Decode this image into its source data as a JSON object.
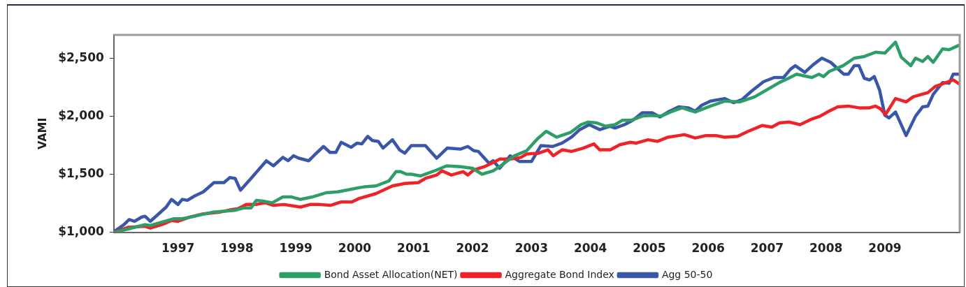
{
  "chart_data": {
    "type": "line",
    "ylabel": "VAMI",
    "xlim": [
      1995.91,
      2010.27
    ],
    "ylim": [
      1000,
      2700
    ],
    "xticks": [
      1997,
      1998,
      1999,
      2000,
      2001,
      2002,
      2003,
      2004,
      2005,
      2006,
      2007,
      2008,
      2009
    ],
    "yticks": [
      {
        "value": 1000,
        "label": "$1,000"
      },
      {
        "value": 1500,
        "label": "$1,500"
      },
      {
        "value": 2000,
        "label": "$2,000"
      },
      {
        "value": 2500,
        "label": "$2,500"
      }
    ],
    "grid": false,
    "legend": "bottom",
    "marker": "none",
    "line_style": "solid",
    "series": [
      {
        "name": "Bond Asset Allocation(NET)",
        "color": "#2e9e68",
        "x": [
          1995.92,
          1996.16,
          1996.44,
          1996.53,
          1996.92,
          1997.07,
          1997.28,
          1997.6,
          1997.96,
          1998.12,
          1998.24,
          1998.33,
          1998.44,
          1998.6,
          1998.78,
          1998.93,
          1999.08,
          1999.28,
          1999.52,
          1999.71,
          2000.0,
          2000.16,
          2000.36,
          2000.58,
          2000.7,
          2000.78,
          2000.88,
          2000.96,
          2001.12,
          2001.39,
          2001.56,
          2001.8,
          2002.0,
          2002.16,
          2002.35,
          2002.52,
          2002.71,
          2002.92,
          2003.1,
          2003.25,
          2003.43,
          2003.67,
          2003.84,
          2003.96,
          2004.11,
          2004.26,
          2004.42,
          2004.54,
          2004.69,
          2004.88,
          2005.02,
          2005.2,
          2005.36,
          2005.56,
          2005.68,
          2005.78,
          2006.04,
          2006.28,
          2006.54,
          2006.79,
          2007.06,
          2007.21,
          2007.36,
          2007.5,
          2007.76,
          2007.88,
          2007.96,
          2008.05,
          2008.29,
          2008.48,
          2008.65,
          2008.84,
          2009.0,
          2009.18,
          2009.28,
          2009.44,
          2009.52,
          2009.64,
          2009.73,
          2009.82,
          2009.98,
          2010.09,
          2010.25
        ],
        "values": [
          1000,
          1029,
          1065,
          1058,
          1116,
          1116,
          1138,
          1174,
          1188,
          1210,
          1210,
          1275,
          1268,
          1254,
          1304,
          1304,
          1283,
          1304,
          1341,
          1348,
          1377,
          1391,
          1399,
          1442,
          1522,
          1522,
          1500,
          1500,
          1485,
          1536,
          1572,
          1565,
          1551,
          1500,
          1529,
          1587,
          1659,
          1703,
          1804,
          1870,
          1819,
          1862,
          1927,
          1949,
          1942,
          1913,
          1927,
          1964,
          1964,
          2000,
          2007,
          2000,
          2036,
          2072,
          2051,
          2036,
          2087,
          2130,
          2123,
          2167,
          2246,
          2290,
          2326,
          2362,
          2333,
          2362,
          2341,
          2384,
          2435,
          2500,
          2514,
          2551,
          2543,
          2638,
          2507,
          2435,
          2500,
          2471,
          2514,
          2464,
          2580,
          2572,
          2609
        ]
      },
      {
        "name": "Aggregate Bond Index",
        "color": "#ee2229",
        "x": [
          1995.92,
          1996.16,
          1996.44,
          1996.53,
          1996.76,
          1996.89,
          1997.0,
          1997.2,
          1997.43,
          1997.72,
          1997.92,
          1998.02,
          1998.16,
          1998.32,
          1998.48,
          1998.62,
          1998.8,
          1999.08,
          1999.24,
          1999.4,
          1999.59,
          1999.77,
          1999.95,
          2000.07,
          2000.36,
          2000.64,
          2000.85,
          2001.08,
          2001.2,
          2001.39,
          2001.48,
          2001.64,
          2001.84,
          2001.92,
          2002.02,
          2002.2,
          2002.35,
          2002.46,
          2002.64,
          2002.82,
          2002.92,
          2003.12,
          2003.28,
          2003.37,
          2003.52,
          2003.68,
          2003.88,
          2004.06,
          2004.16,
          2004.34,
          2004.5,
          2004.68,
          2004.78,
          2004.98,
          2005.14,
          2005.32,
          2005.5,
          2005.6,
          2005.78,
          2005.96,
          2006.13,
          2006.28,
          2006.5,
          2006.68,
          2006.92,
          2007.08,
          2007.21,
          2007.38,
          2007.56,
          2007.74,
          2007.9,
          2008.05,
          2008.2,
          2008.38,
          2008.56,
          2008.74,
          2008.84,
          2008.92,
          2009.01,
          2009.18,
          2009.36,
          2009.48,
          2009.73,
          2009.85,
          2010.0,
          2010.16,
          2010.27
        ],
        "values": [
          1000,
          1043,
          1051,
          1036,
          1072,
          1101,
          1094,
          1130,
          1159,
          1174,
          1196,
          1203,
          1239,
          1239,
          1254,
          1232,
          1239,
          1217,
          1239,
          1239,
          1232,
          1261,
          1261,
          1290,
          1333,
          1399,
          1420,
          1428,
          1464,
          1493,
          1529,
          1493,
          1522,
          1493,
          1536,
          1565,
          1601,
          1630,
          1630,
          1645,
          1674,
          1681,
          1710,
          1659,
          1710,
          1696,
          1725,
          1761,
          1710,
          1710,
          1754,
          1775,
          1768,
          1797,
          1783,
          1819,
          1833,
          1841,
          1812,
          1833,
          1833,
          1819,
          1826,
          1870,
          1920,
          1906,
          1942,
          1949,
          1927,
          1971,
          2000,
          2043,
          2080,
          2087,
          2072,
          2072,
          2087,
          2065,
          2014,
          2152,
          2123,
          2167,
          2203,
          2254,
          2283,
          2312,
          2275
        ]
      },
      {
        "name": "Agg 50-50",
        "color": "#3a56a8",
        "x": [
          1995.92,
          1996.08,
          1996.17,
          1996.26,
          1996.38,
          1996.44,
          1996.53,
          1996.8,
          1996.89,
          1997.0,
          1997.07,
          1997.16,
          1997.28,
          1997.43,
          1997.61,
          1997.78,
          1997.88,
          1997.97,
          1998.06,
          1998.24,
          1998.5,
          1998.62,
          1998.78,
          1998.87,
          1998.96,
          1999.05,
          1999.22,
          1999.32,
          1999.47,
          1999.58,
          1999.68,
          1999.77,
          1999.94,
          2000.04,
          2000.12,
          2000.22,
          2000.3,
          2000.4,
          2000.48,
          2000.64,
          2000.76,
          2000.85,
          2000.96,
          2001.2,
          2001.39,
          2001.57,
          2001.8,
          2001.92,
          2002.02,
          2002.1,
          2002.28,
          2002.35,
          2002.46,
          2002.64,
          2002.8,
          2003.0,
          2003.16,
          2003.36,
          2003.52,
          2003.68,
          2003.82,
          2003.98,
          2004.16,
          2004.33,
          2004.42,
          2004.58,
          2004.72,
          2004.88,
          2005.05,
          2005.18,
          2005.32,
          2005.5,
          2005.66,
          2005.78,
          2005.89,
          2006.04,
          2006.28,
          2006.43,
          2006.58,
          2006.74,
          2006.94,
          2007.12,
          2007.28,
          2007.4,
          2007.48,
          2007.64,
          2007.78,
          2007.93,
          2008.08,
          2008.3,
          2008.38,
          2008.48,
          2008.56,
          2008.65,
          2008.74,
          2008.82,
          2008.91,
          2009.0,
          2009.07,
          2009.18,
          2009.36,
          2009.52,
          2009.64,
          2009.73,
          2009.82,
          2009.98,
          2010.09,
          2010.16,
          2010.25
        ],
        "values": [
          1007,
          1065,
          1109,
          1094,
          1130,
          1138,
          1094,
          1217,
          1283,
          1239,
          1283,
          1275,
          1312,
          1348,
          1428,
          1428,
          1471,
          1464,
          1362,
          1464,
          1616,
          1572,
          1645,
          1616,
          1659,
          1638,
          1616,
          1667,
          1739,
          1688,
          1688,
          1775,
          1732,
          1768,
          1761,
          1826,
          1790,
          1783,
          1725,
          1797,
          1710,
          1681,
          1746,
          1746,
          1638,
          1725,
          1717,
          1739,
          1703,
          1696,
          1594,
          1616,
          1551,
          1659,
          1609,
          1609,
          1746,
          1739,
          1768,
          1819,
          1884,
          1927,
          1884,
          1913,
          1898,
          1927,
          1964,
          2029,
          2029,
          1993,
          2036,
          2080,
          2072,
          2043,
          2094,
          2130,
          2152,
          2116,
          2145,
          2217,
          2297,
          2333,
          2333,
          2406,
          2435,
          2377,
          2442,
          2500,
          2464,
          2362,
          2362,
          2435,
          2435,
          2326,
          2312,
          2341,
          2225,
          2007,
          1985,
          2036,
          1833,
          2000,
          2080,
          2087,
          2188,
          2290,
          2283,
          2362,
          2362
        ]
      }
    ]
  }
}
